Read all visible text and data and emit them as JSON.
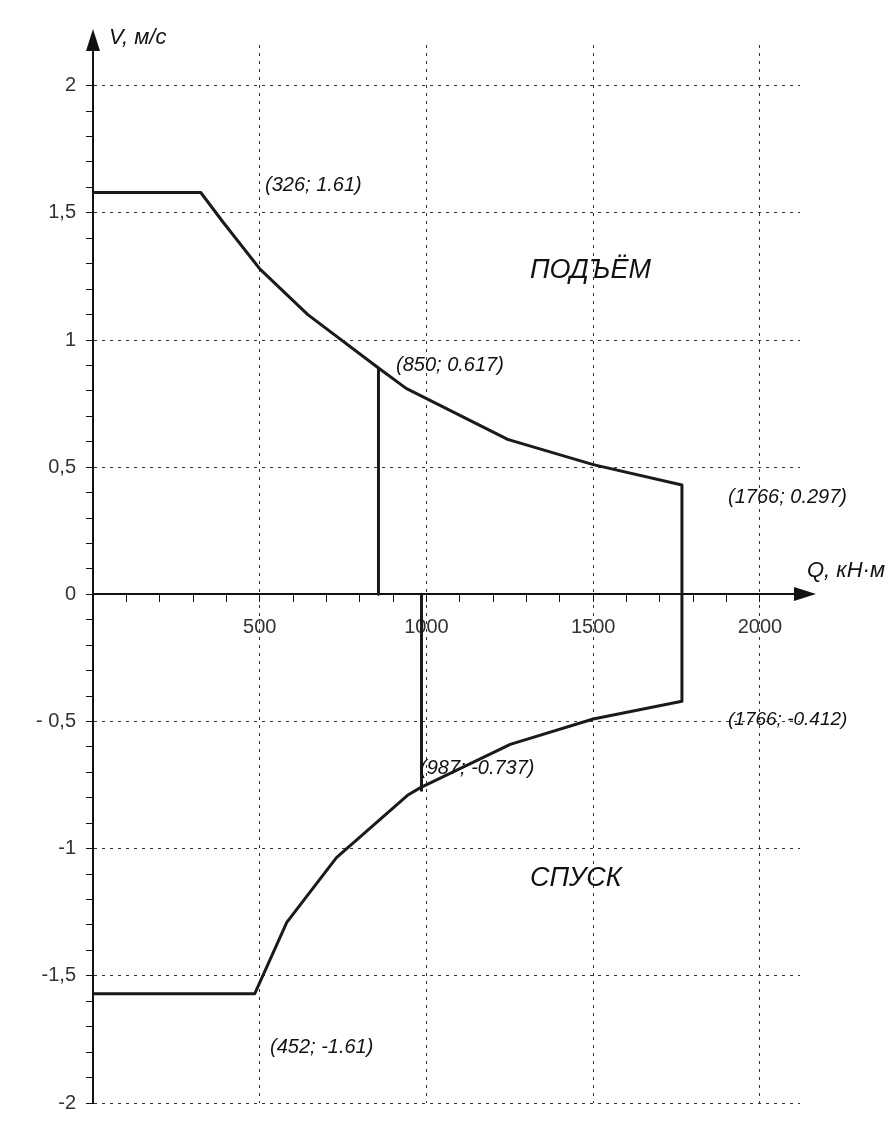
{
  "chart_data": {
    "type": "line",
    "xlabel": "Q, кН·м",
    "ylabel": "V, м/с",
    "xlim": [
      0,
      2120
    ],
    "ylim": [
      -2,
      2.16
    ],
    "xticks": [
      {
        "value": 100,
        "label": null
      },
      {
        "value": 200,
        "label": null
      },
      {
        "value": 300,
        "label": null
      },
      {
        "value": 400,
        "label": null
      },
      500,
      {
        "value": 600,
        "label": null
      },
      {
        "value": 700,
        "label": null
      },
      {
        "value": 800,
        "label": null
      },
      {
        "value": 900,
        "label": null
      },
      1000,
      {
        "value": 1100,
        "label": null
      },
      {
        "value": 1200,
        "label": null
      },
      {
        "value": 1300,
        "label": null
      },
      {
        "value": 1400,
        "label": null
      },
      1500,
      {
        "value": 1600,
        "label": null
      },
      {
        "value": 1700,
        "label": null
      },
      {
        "value": 1800,
        "label": null
      },
      {
        "value": 1900,
        "label": null
      },
      2000
    ],
    "yticks": [
      {
        "value": -2,
        "label": "-2"
      },
      {
        "value": -1.9,
        "label": null
      },
      {
        "value": -1.8,
        "label": null
      },
      {
        "value": -1.7,
        "label": null
      },
      {
        "value": -1.6,
        "label": null
      },
      {
        "value": -1.5,
        "label": "-1,5"
      },
      {
        "value": -1.4,
        "label": null
      },
      {
        "value": -1.3,
        "label": null
      },
      {
        "value": -1.2,
        "label": null
      },
      {
        "value": -1.1,
        "label": null
      },
      {
        "value": -1,
        "label": "-1"
      },
      {
        "value": -0.9,
        "label": null
      },
      {
        "value": -0.8,
        "label": null
      },
      {
        "value": -0.7,
        "label": null
      },
      {
        "value": -0.6,
        "label": null
      },
      {
        "value": -0.5,
        "label": "- 0,5"
      },
      {
        "value": -0.4,
        "label": null
      },
      {
        "value": -0.3,
        "label": null
      },
      {
        "value": -0.2,
        "label": null
      },
      {
        "value": -0.1,
        "label": null
      },
      {
        "value": 0,
        "label": "0"
      },
      {
        "value": 0.1,
        "label": null
      },
      {
        "value": 0.2,
        "label": null
      },
      {
        "value": 0.3,
        "label": null
      },
      {
        "value": 0.4,
        "label": null
      },
      {
        "value": 0.5,
        "label": "0,5"
      },
      {
        "value": 0.6,
        "label": null
      },
      {
        "value": 0.7,
        "label": null
      },
      {
        "value": 0.8,
        "label": null
      },
      {
        "value": 0.9,
        "label": null
      },
      {
        "value": 1,
        "label": "1"
      },
      {
        "value": 1.1,
        "label": null
      },
      {
        "value": 1.2,
        "label": null
      },
      {
        "value": 1.3,
        "label": null
      },
      {
        "value": 1.4,
        "label": null
      },
      {
        "value": 1.5,
        "label": "1,5"
      },
      {
        "value": 1.6,
        "label": null
      },
      {
        "value": 1.7,
        "label": null
      },
      {
        "value": 1.8,
        "label": null
      },
      {
        "value": 1.9,
        "label": null
      },
      {
        "value": 2,
        "label": "2"
      }
    ],
    "grid": true,
    "marker": "none",
    "line_style": "solid",
    "legend": false,
    "series": [
      {
        "color": "#1a1a1a",
        "x": [
          0,
          323,
          389,
          500,
          644,
          856,
          939,
          1242,
          1500,
          1766,
          1766,
          1500,
          1251,
          982,
          943,
          730,
          581,
          485,
          0
        ],
        "values": [
          1.58,
          1.58,
          1.465,
          1.28,
          1.1,
          0.89,
          0.81,
          0.61,
          0.51,
          0.43,
          -0.42,
          -0.49,
          -0.59,
          -0.76,
          -0.79,
          -1.035,
          -1.29,
          -1.57,
          -1.57
        ]
      },
      {
        "color": "#1a1a1a",
        "x": [
          856,
          856
        ],
        "values": [
          0,
          0.89
        ]
      },
      {
        "color": "#1a1a1a",
        "x": [
          985,
          985
        ],
        "values": [
          0,
          -0.77
        ]
      }
    ],
    "annotations": [
      "(326; 1.61)",
      "(850; 0.617)",
      "(1766; 0.297)",
      "(1766; -0.412)",
      "(987; -0.737)",
      "(452; -1.61)",
      "ПОДЪЁМ",
      "СПУСК"
    ]
  }
}
